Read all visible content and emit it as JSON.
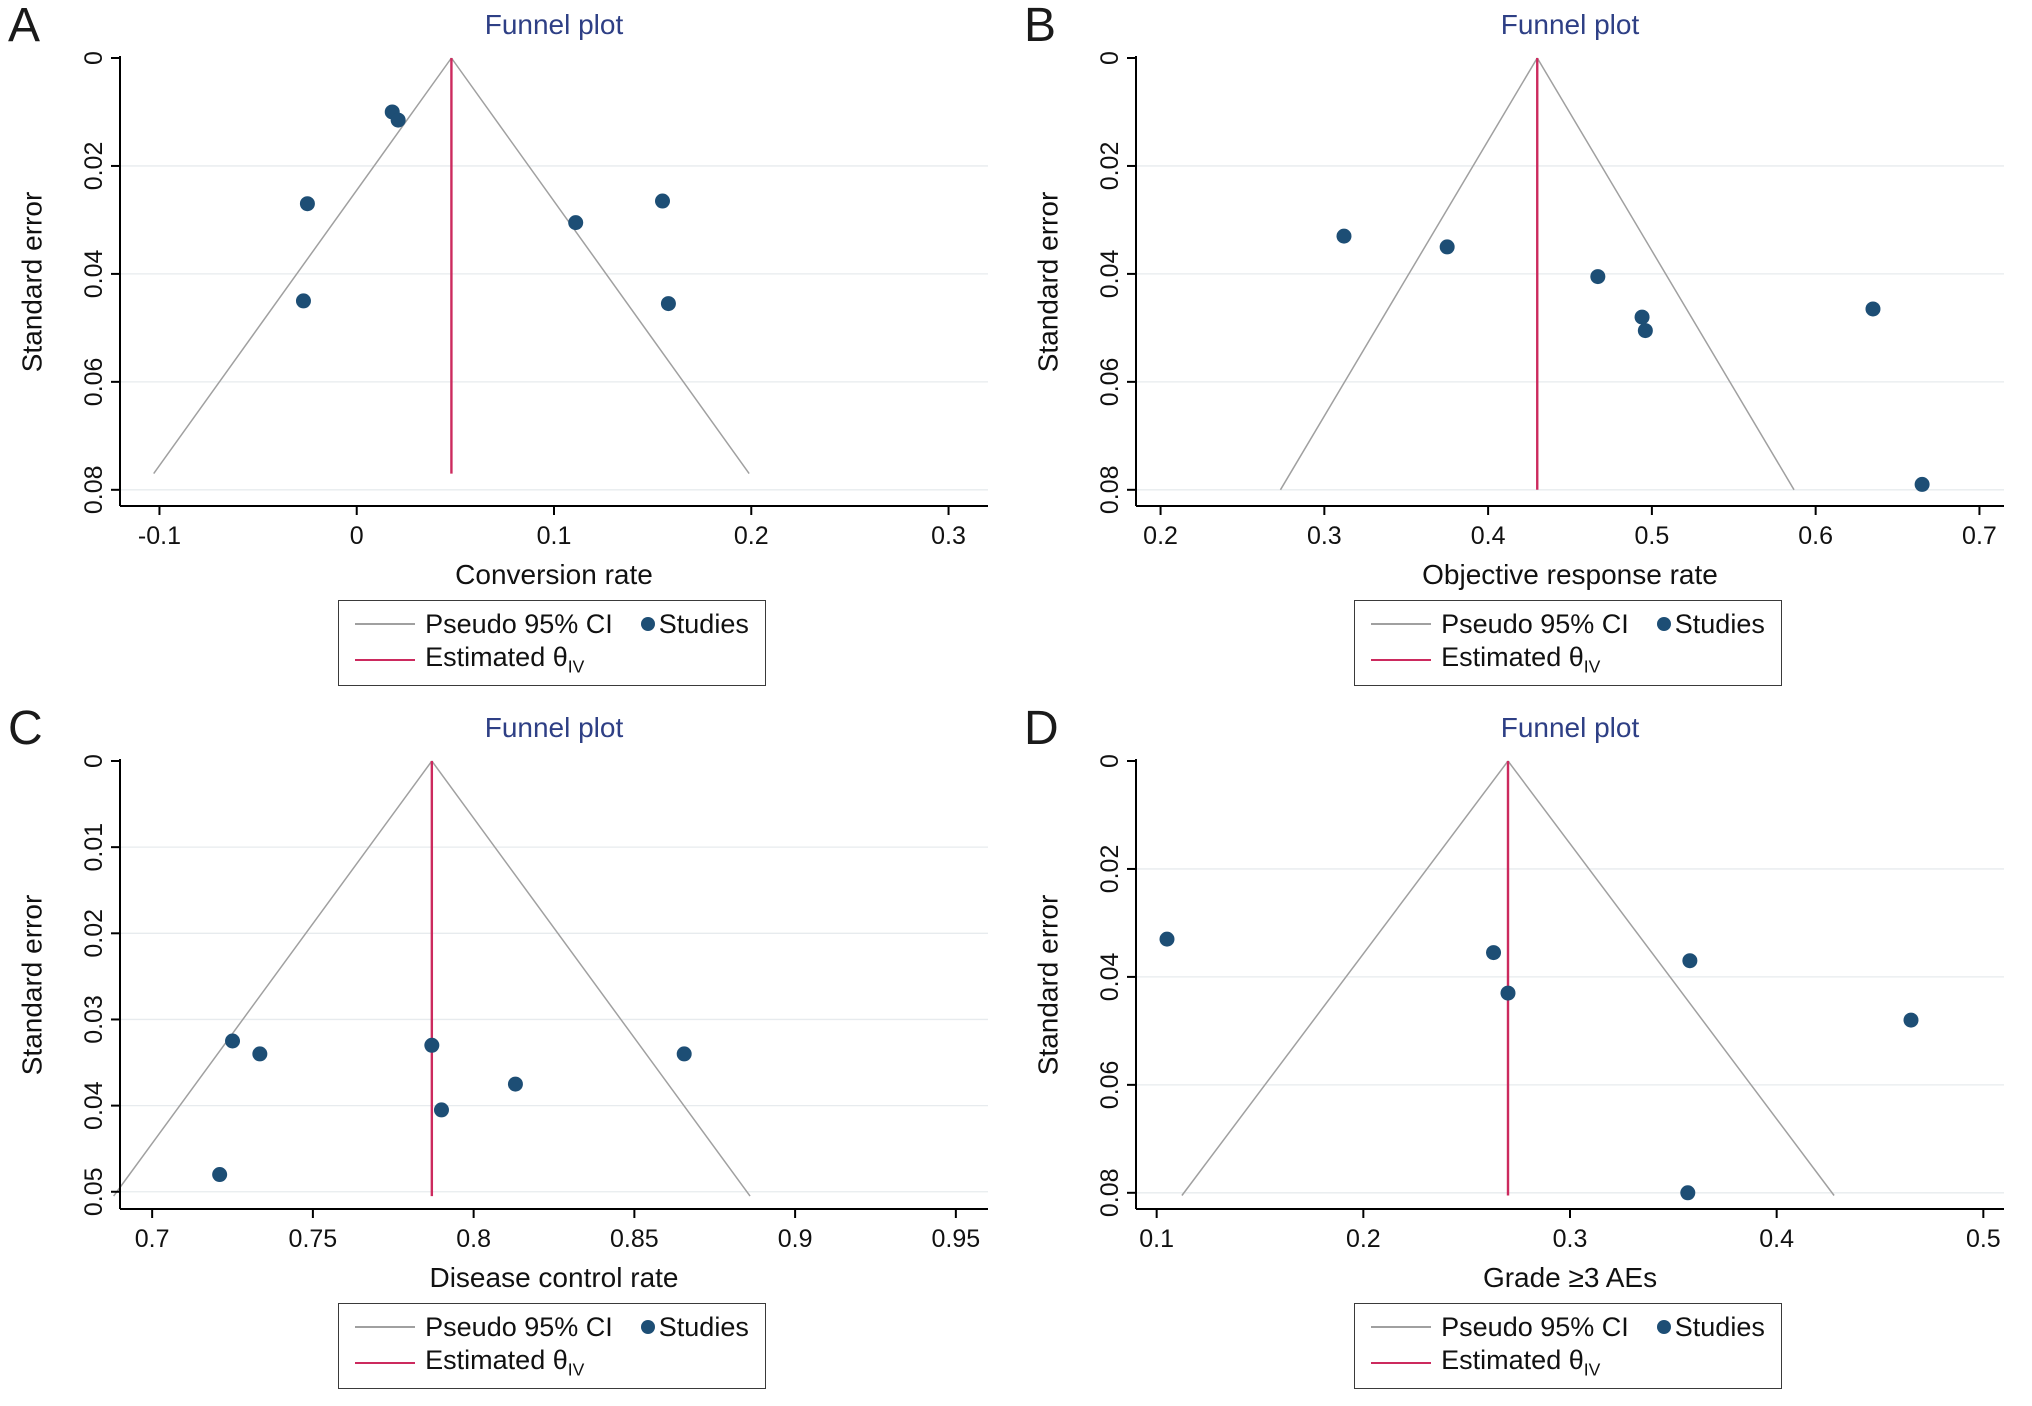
{
  "figure": {
    "description": "Four funnel plots (A-D) assessing publication bias for meta-analysis outcomes"
  },
  "colors": {
    "title": "#2e3f85",
    "marker": "#1d4e75",
    "ci_line": "#a0a0a0",
    "estimate_line": "#cc2a5e",
    "axis": "#000000",
    "grid": "#e7ebee",
    "text": "#111111"
  },
  "legend": {
    "ci_label": "Pseudo 95% CI",
    "studies_label": "Studies",
    "estimate_label": "Estimated θ",
    "estimate_sub": "IV",
    "position": "bottom"
  },
  "chart_data": [
    {
      "type": "scatter",
      "letter": "A",
      "title": "Funnel plot",
      "xlabel": "Conversion rate",
      "ylabel": "Standard error",
      "y_axis_reversed": true,
      "grid": true,
      "xlim": [
        -0.12,
        0.32
      ],
      "ylim": [
        0,
        0.083
      ],
      "xticks": [
        "-0.1",
        "0",
        "0.1",
        "0.2",
        "0.3"
      ],
      "yticks": [
        "0",
        "0.02",
        "0.04",
        "0.06",
        "0.08"
      ],
      "estimate_theta": 0.048,
      "se_max": 0.077,
      "ci_multiplier": 1.96,
      "series_name": "Studies",
      "points": [
        [
          0.018,
          0.01
        ],
        [
          0.021,
          0.0115
        ],
        [
          -0.025,
          0.027
        ],
        [
          0.155,
          0.0265
        ],
        [
          0.111,
          0.0305
        ],
        [
          -0.027,
          0.045
        ],
        [
          0.158,
          0.0455
        ]
      ]
    },
    {
      "type": "scatter",
      "letter": "B",
      "title": "Funnel plot",
      "xlabel": "Objective response rate",
      "ylabel": "Standard error",
      "y_axis_reversed": true,
      "grid": true,
      "xlim": [
        0.185,
        0.715
      ],
      "ylim": [
        0,
        0.083
      ],
      "xticks": [
        "0.2",
        "0.3",
        "0.4",
        "0.5",
        "0.6",
        "0.7"
      ],
      "yticks": [
        "0",
        "0.02",
        "0.04",
        "0.06",
        "0.08"
      ],
      "estimate_theta": 0.43,
      "se_max": 0.08,
      "ci_multiplier": 1.96,
      "series_name": "Studies",
      "points": [
        [
          0.312,
          0.033
        ],
        [
          0.375,
          0.035
        ],
        [
          0.467,
          0.0405
        ],
        [
          0.494,
          0.048
        ],
        [
          0.496,
          0.0505
        ],
        [
          0.635,
          0.0465
        ],
        [
          0.665,
          0.079
        ]
      ]
    },
    {
      "type": "scatter",
      "letter": "C",
      "title": "Funnel plot",
      "xlabel": "Disease control rate",
      "ylabel": "Standard error",
      "y_axis_reversed": true,
      "grid": true,
      "xlim": [
        0.69,
        0.96
      ],
      "ylim": [
        0,
        0.052
      ],
      "xticks": [
        "0.7",
        "0.75",
        "0.8",
        "0.85",
        "0.9",
        "0.95"
      ],
      "yticks": [
        "0",
        "0.01",
        "0.02",
        "0.03",
        "0.04",
        "0.05"
      ],
      "estimate_theta": 0.787,
      "se_max": 0.0505,
      "ci_multiplier": 1.96,
      "series_name": "Studies",
      "points": [
        [
          0.725,
          0.0325
        ],
        [
          0.7335,
          0.034
        ],
        [
          0.787,
          0.033
        ],
        [
          0.79,
          0.0405
        ],
        [
          0.813,
          0.0375
        ],
        [
          0.8655,
          0.034
        ],
        [
          0.721,
          0.048
        ]
      ]
    },
    {
      "type": "scatter",
      "letter": "D",
      "title": "Funnel plot",
      "xlabel": "Grade ≥3 AEs",
      "ylabel": "Standard error",
      "y_axis_reversed": true,
      "grid": true,
      "xlim": [
        0.09,
        0.51
      ],
      "ylim": [
        0,
        0.083
      ],
      "xticks": [
        "0.1",
        "0.2",
        "0.3",
        "0.4",
        "0.5"
      ],
      "yticks": [
        "0",
        "0.02",
        "0.04",
        "0.06",
        "0.08"
      ],
      "estimate_theta": 0.27,
      "se_max": 0.0805,
      "ci_multiplier": 1.96,
      "series_name": "Studies",
      "points": [
        [
          0.105,
          0.033
        ],
        [
          0.263,
          0.0355
        ],
        [
          0.27,
          0.043
        ],
        [
          0.358,
          0.037
        ],
        [
          0.465,
          0.048
        ],
        [
          0.357,
          0.08
        ]
      ]
    }
  ]
}
